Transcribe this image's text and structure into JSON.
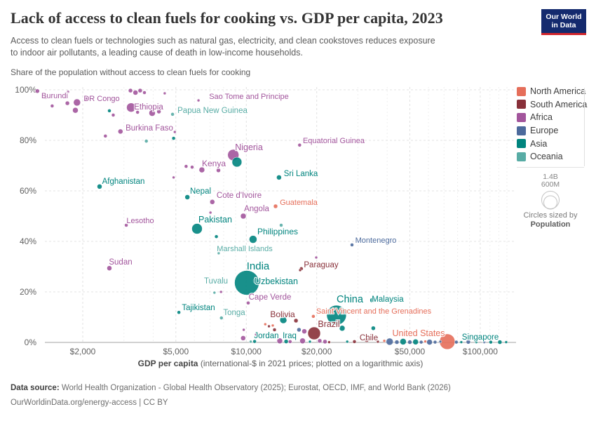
{
  "header": {
    "title": "Lack of access to clean fuels for cooking vs. GDP per capita, 2023",
    "subtitle": [
      "Access to clean fuels or technologies such as natural gas, electricity, and clean cookstoves reduces exposure",
      "to indoor air pollutants, a leading cause of death in low-income households."
    ],
    "logo": [
      "Our World",
      "in Data"
    ]
  },
  "chart_heading": "Share of the population without access to clean fuels for cooking",
  "legend": {
    "order": [
      "NA",
      "SA",
      "AF",
      "EU",
      "AS",
      "OC"
    ],
    "size": {
      "big": "1.4B",
      "small": "600M",
      "caption1": "Circles sized by",
      "caption2": "Population"
    }
  },
  "continents": {
    "NA": {
      "label": "North America",
      "color": "#e56e5a"
    },
    "SA": {
      "label": "South America",
      "color": "#883039"
    },
    "AF": {
      "label": "Africa",
      "color": "#a2559c"
    },
    "EU": {
      "label": "Europe",
      "color": "#4c6a9c"
    },
    "AS": {
      "label": "Asia",
      "color": "#00847e"
    },
    "OC": {
      "label": "Oceania",
      "color": "#58aca5"
    }
  },
  "chart_data": {
    "type": "scatter",
    "title": "Lack of access to clean fuels for cooking vs. GDP per capita, 2023",
    "xlabel_bold": "GDP per capita",
    "xlabel_rest": " (international-$ in 2021 prices; plotted on a logarithmic axis)",
    "ylabel": "Share of the population without access to clean fuels for cooking",
    "x_scale": "log",
    "x_domain": [
      1390,
      136000
    ],
    "y_domain": [
      0,
      100
    ],
    "x_ticks": [
      {
        "value": 2000,
        "label": "$2,000"
      },
      {
        "value": 5000,
        "label": "$5,000"
      },
      {
        "value": 10000,
        "label": "$10,000"
      },
      {
        "value": 20000,
        "label": "$20,000"
      },
      {
        "value": 50000,
        "label": "$50,000"
      },
      {
        "value": 100000,
        "label": "$100,000"
      }
    ],
    "x_minor_ticks": [
      3000,
      4000,
      6000,
      7000,
      8000,
      9000,
      30000,
      40000,
      60000,
      70000,
      80000,
      90000,
      110000,
      120000,
      130000
    ],
    "y_ticks": [
      {
        "value": 0,
        "label": "0%"
      },
      {
        "value": 20,
        "label": "20%"
      },
      {
        "value": 40,
        "label": "40%"
      },
      {
        "value": 60,
        "label": "60%"
      },
      {
        "value": 80,
        "label": "80%"
      },
      {
        "value": 100,
        "label": "100%"
      }
    ],
    "points": [
      {
        "name": "Burundi",
        "continent": "AF",
        "gdp": 1280,
        "pct": 99.5,
        "r": 3,
        "label": {
          "x": 78,
          "y": 136,
          "size": 11
        }
      },
      {
        "name": "DR Congo",
        "continent": "AF",
        "gdp": 1890,
        "pct": 95,
        "r": 5,
        "label": {
          "x": 145,
          "y": 140,
          "size": 11
        }
      },
      {
        "name": "Ethiopia",
        "continent": "AF",
        "gdp": 3220,
        "pct": 93,
        "r": 6.5,
        "label": {
          "x": 212,
          "y": 152,
          "size": 11.5
        }
      },
      {
        "name": "Sao Tome and Principe",
        "continent": "AF",
        "gdp": 6250,
        "pct": 95.8,
        "r": 2,
        "label": {
          "x": 355,
          "y": 137,
          "size": 11
        }
      },
      {
        "name": "Papua New Guinea",
        "continent": "OC",
        "gdp": 4840,
        "pct": 90.3,
        "r": 2.5,
        "label": {
          "x": 303,
          "y": 157,
          "size": 11.5
        }
      },
      {
        "name": "Burkina Faso",
        "continent": "AF",
        "gdp": 2900,
        "pct": 83.5,
        "r": 3.5,
        "label": {
          "x": 213,
          "y": 182,
          "size": 11.5
        }
      },
      {
        "name": "Equatorial Guinea",
        "continent": "AF",
        "gdp": 16900,
        "pct": 78.1,
        "r": 2.5,
        "label": {
          "x": 476,
          "y": 200,
          "size": 11
        }
      },
      {
        "name": "Nigeria",
        "continent": "AF",
        "gdp": 8800,
        "pct": 74.2,
        "r": 8,
        "label": {
          "x": 355,
          "y": 210,
          "size": 12.5
        }
      },
      {
        "name": "Kenya",
        "continent": "AF",
        "gdp": 6460,
        "pct": 68.3,
        "r": 4,
        "label": {
          "x": 305,
          "y": 233,
          "size": 12
        }
      },
      {
        "name": "Sri Lanka",
        "continent": "AS",
        "gdp": 13800,
        "pct": 65.3,
        "r": 3.5,
        "label": {
          "x": 429,
          "y": 247,
          "size": 11.5
        }
      },
      {
        "name": "Afghanistan",
        "continent": "AS",
        "gdp": 2360,
        "pct": 61.7,
        "r": 3.5,
        "label": {
          "x": 176,
          "y": 258,
          "size": 11.5
        }
      },
      {
        "name": "Nepal",
        "continent": "AS",
        "gdp": 5600,
        "pct": 57.5,
        "r": 3.5,
        "label": {
          "x": 286,
          "y": 272,
          "size": 11.5
        }
      },
      {
        "name": "Cote d'Ivoire",
        "continent": "AF",
        "gdp": 7160,
        "pct": 55.6,
        "r": 3.5,
        "label": {
          "x": 341,
          "y": 278,
          "size": 11.5
        }
      },
      {
        "name": "Guatemala",
        "continent": "NA",
        "gdp": 13340,
        "pct": 53.9,
        "r": 3,
        "label": {
          "x": 426,
          "y": 288,
          "size": 11
        }
      },
      {
        "name": "Angola",
        "continent": "AF",
        "gdp": 9710,
        "pct": 50,
        "r": 4,
        "label": {
          "x": 366,
          "y": 297,
          "size": 11.5
        }
      },
      {
        "name": "Lesotho",
        "continent": "AF",
        "gdp": 3070,
        "pct": 46.4,
        "r": 2.5,
        "label": {
          "x": 200,
          "y": 314,
          "size": 11
        }
      },
      {
        "name": "Pakistan",
        "continent": "AS",
        "gdp": 6160,
        "pct": 45,
        "r": 7.5,
        "label": {
          "x": 307,
          "y": 313,
          "size": 12.5
        }
      },
      {
        "name": "Philippines",
        "continent": "AS",
        "gdp": 10690,
        "pct": 40.8,
        "r": 5.5,
        "label": {
          "x": 396,
          "y": 330,
          "size": 12
        }
      },
      {
        "name": "Marshall Islands",
        "continent": "OC",
        "gdp": 7620,
        "pct": 35.3,
        "r": 2,
        "label": {
          "x": 349,
          "y": 354,
          "size": 11
        }
      },
      {
        "name": "Montenegro",
        "continent": "EU",
        "gdp": 28300,
        "pct": 38.6,
        "r": 2.5,
        "label": {
          "x": 536,
          "y": 342,
          "size": 11
        }
      },
      {
        "name": "Sudan",
        "continent": "AF",
        "gdp": 2600,
        "pct": 29.4,
        "r": 3.5,
        "label": {
          "x": 172,
          "y": 373,
          "size": 11.5
        }
      },
      {
        "name": "Paraguay",
        "continent": "SA",
        "gdp": 17200,
        "pct": 29.2,
        "r": 2.5,
        "label": {
          "x": 458,
          "y": 377,
          "size": 11.5
        }
      },
      {
        "name": "India",
        "continent": "AS",
        "gdp": 10050,
        "pct": 23.6,
        "r": 17.5,
        "label": {
          "x": 368,
          "y": 380,
          "size": 15
        }
      },
      {
        "name": "Uzbekistan",
        "continent": "AS",
        "gdp": 11000,
        "pct": 24.4,
        "r": 4,
        "label": {
          "x": 394,
          "y": 401,
          "size": 12.5
        }
      },
      {
        "name": "Tuvalu",
        "continent": "OC",
        "gdp": 7310,
        "pct": 19.7,
        "r": 2,
        "label": {
          "x": 308,
          "y": 400,
          "size": 11.5
        }
      },
      {
        "name": "Cape Verde",
        "continent": "AF",
        "gdp": 10190,
        "pct": 15.6,
        "r": 2.5,
        "label": {
          "x": 385,
          "y": 423,
          "size": 11.5
        }
      },
      {
        "name": "Tajikistan",
        "continent": "AS",
        "gdp": 5150,
        "pct": 11.9,
        "r": 2.5,
        "label": {
          "x": 283,
          "y": 438,
          "size": 11.5
        }
      },
      {
        "name": "Tonga",
        "continent": "OC",
        "gdp": 7830,
        "pct": 9.7,
        "r": 2.5,
        "label": {
          "x": 334,
          "y": 445,
          "size": 11.5
        }
      },
      {
        "name": "China",
        "continent": "AS",
        "gdp": 24300,
        "pct": 10.8,
        "r": 14,
        "label": {
          "x": 499,
          "y": 427,
          "size": 14.5
        }
      },
      {
        "name": "Malaysia",
        "continent": "AS",
        "gdp": 34600,
        "pct": 16.7,
        "r": 3.5,
        "label": {
          "x": 553,
          "y": 426,
          "size": 11.5
        }
      },
      {
        "name": "Saint Vincent and the Grenadines",
        "continent": "NA",
        "gdp": 23500,
        "pct": 13.1,
        "r": 2.5,
        "label": {
          "x": 533,
          "y": 443,
          "size": 11
        }
      },
      {
        "name": "Bolivia",
        "continent": "SA",
        "gdp": 16300,
        "pct": 8.6,
        "r": 3,
        "label": {
          "x": 403,
          "y": 448,
          "size": 12
        }
      },
      {
        "name": "Brazil",
        "continent": "SA",
        "gdp": 19500,
        "pct": 3.6,
        "r": 9,
        "label": {
          "x": 469,
          "y": 462,
          "size": 12.5
        }
      },
      {
        "name": "Jordan",
        "continent": "AS",
        "gdp": 10850,
        "pct": 0.4,
        "r": 2.5,
        "label": {
          "x": 380,
          "y": 478,
          "size": 11.5
        }
      },
      {
        "name": "Iraq",
        "continent": "AS",
        "gdp": 14800,
        "pct": 0.4,
        "r": 3,
        "label": {
          "x": 413,
          "y": 478,
          "size": 11.5
        }
      },
      {
        "name": "Chile",
        "continent": "SA",
        "gdp": 32700,
        "pct": 0.9,
        "r": 3,
        "label": {
          "x": 526,
          "y": 481,
          "size": 11.5
        }
      },
      {
        "name": "United States",
        "continent": "NA",
        "gdp": 72300,
        "pct": 0.3,
        "r": 11,
        "label": {
          "x": 597,
          "y": 475,
          "size": 12.5
        }
      },
      {
        "name": "Singapore",
        "continent": "AS",
        "gdp": 121300,
        "pct": 0.1,
        "r": 3,
        "label": {
          "x": 685,
          "y": 480,
          "size": 11.5
        }
      }
    ],
    "filler_points_format": [
      "gdp",
      "pct",
      "r",
      "continent"
    ],
    "filler_points": [
      [
        1385,
        97,
        2.5,
        "AF"
      ],
      [
        1480,
        93.6,
        2.5,
        "AF"
      ],
      [
        1720,
        94.7,
        3,
        "AF"
      ],
      [
        1860,
        91.9,
        4,
        "AF"
      ],
      [
        1730,
        99.2,
        2,
        "AF"
      ],
      [
        2070,
        96.4,
        2.5,
        "AF"
      ],
      [
        3200,
        99.7,
        3,
        "AF"
      ],
      [
        3360,
        98.9,
        3.5,
        "AF"
      ],
      [
        3520,
        99.7,
        3,
        "AF"
      ],
      [
        3670,
        98.9,
        2.5,
        "AF"
      ],
      [
        4480,
        98.6,
        2,
        "AF"
      ],
      [
        2600,
        91.7,
        2.5,
        "AS"
      ],
      [
        2700,
        90,
        2.5,
        "AF"
      ],
      [
        3430,
        91.1,
        2.5,
        "AF"
      ],
      [
        3960,
        90.8,
        4.5,
        "AF"
      ],
      [
        4230,
        91.4,
        3,
        "AF"
      ],
      [
        2500,
        81.7,
        2.5,
        "AF"
      ],
      [
        3740,
        79.7,
        2.5,
        "OC"
      ],
      [
        4890,
        80.8,
        2.5,
        "AS"
      ],
      [
        4950,
        83.3,
        2,
        "AF"
      ],
      [
        5530,
        69.7,
        2.5,
        "AF"
      ],
      [
        5870,
        69.4,
        2.5,
        "AF"
      ],
      [
        7600,
        68.1,
        3,
        "AF"
      ],
      [
        4890,
        65.3,
        2,
        "AF"
      ],
      [
        9120,
        71.4,
        7,
        "AS"
      ],
      [
        7030,
        51.4,
        2,
        "AF"
      ],
      [
        7450,
        41.9,
        2.5,
        "AS"
      ],
      [
        14100,
        46.4,
        2.5,
        "OC"
      ],
      [
        19900,
        33.6,
        2,
        "AF"
      ],
      [
        7800,
        20,
        2,
        "AF"
      ],
      [
        14400,
        8.9,
        5,
        "AS"
      ],
      [
        16800,
        5,
        3,
        "EU"
      ],
      [
        17700,
        4.4,
        3.5,
        "AF"
      ],
      [
        12500,
        6.4,
        2,
        "SA"
      ],
      [
        13200,
        5,
        2.5,
        "SA"
      ],
      [
        12980,
        6.7,
        2,
        "NA"
      ],
      [
        12050,
        7.2,
        2,
        "NA"
      ],
      [
        13900,
        0.6,
        4,
        "AF"
      ],
      [
        15400,
        0.3,
        2.5,
        "AF"
      ],
      [
        17400,
        0.6,
        4,
        "AF"
      ],
      [
        18700,
        0.3,
        2,
        "AS"
      ],
      [
        20600,
        0.6,
        3,
        "AF"
      ],
      [
        21700,
        0.3,
        3,
        "AF"
      ],
      [
        22600,
        0.1,
        2,
        "SA"
      ],
      [
        25700,
        5.6,
        4,
        "AS"
      ],
      [
        27000,
        0.3,
        2,
        "AS"
      ],
      [
        29000,
        0.3,
        2.5,
        "SA"
      ],
      [
        34900,
        5.6,
        3,
        "AS"
      ],
      [
        36500,
        0.3,
        2,
        "SA"
      ],
      [
        38900,
        0.6,
        2,
        "NA"
      ],
      [
        41000,
        0.3,
        5,
        "EU"
      ],
      [
        44000,
        0.1,
        3,
        "EU"
      ],
      [
        46800,
        0.3,
        4.5,
        "AS"
      ],
      [
        50000,
        0.1,
        3,
        "EU"
      ],
      [
        52900,
        0.2,
        4,
        "AS"
      ],
      [
        55900,
        0.1,
        2.5,
        "EU"
      ],
      [
        58200,
        0.4,
        2,
        "NA"
      ],
      [
        60700,
        0.1,
        4,
        "EU"
      ],
      [
        64100,
        0.1,
        2.5,
        "EU"
      ],
      [
        67500,
        0.3,
        2,
        "EU"
      ],
      [
        79000,
        0.1,
        2.5,
        "EU"
      ],
      [
        83000,
        0.1,
        2,
        "AS"
      ],
      [
        88900,
        0.2,
        3,
        "EU"
      ],
      [
        96200,
        0.1,
        2,
        "AS"
      ],
      [
        104000,
        0.1,
        2,
        "EU"
      ],
      [
        110900,
        0.1,
        2.5,
        "AS"
      ],
      [
        129000,
        0.1,
        2,
        "AS"
      ],
      [
        9700,
        1.7,
        3.5,
        "AF"
      ],
      [
        9750,
        5,
        2,
        "AF"
      ],
      [
        11000,
        3.1,
        2,
        "AF"
      ],
      [
        10450,
        0.3,
        2,
        "OC"
      ],
      [
        19350,
        10.3,
        2.5,
        "NA"
      ],
      [
        16980,
        28.6,
        2,
        "SA"
      ]
    ]
  },
  "footer": {
    "source_label": "Data source:",
    "source_rest": " World Health Organization - Global Health Observatory (2025); Eurostat, OECD, IMF, and World Bank (2026)",
    "line2": "OurWorldinData.org/energy-access | CC BY"
  }
}
